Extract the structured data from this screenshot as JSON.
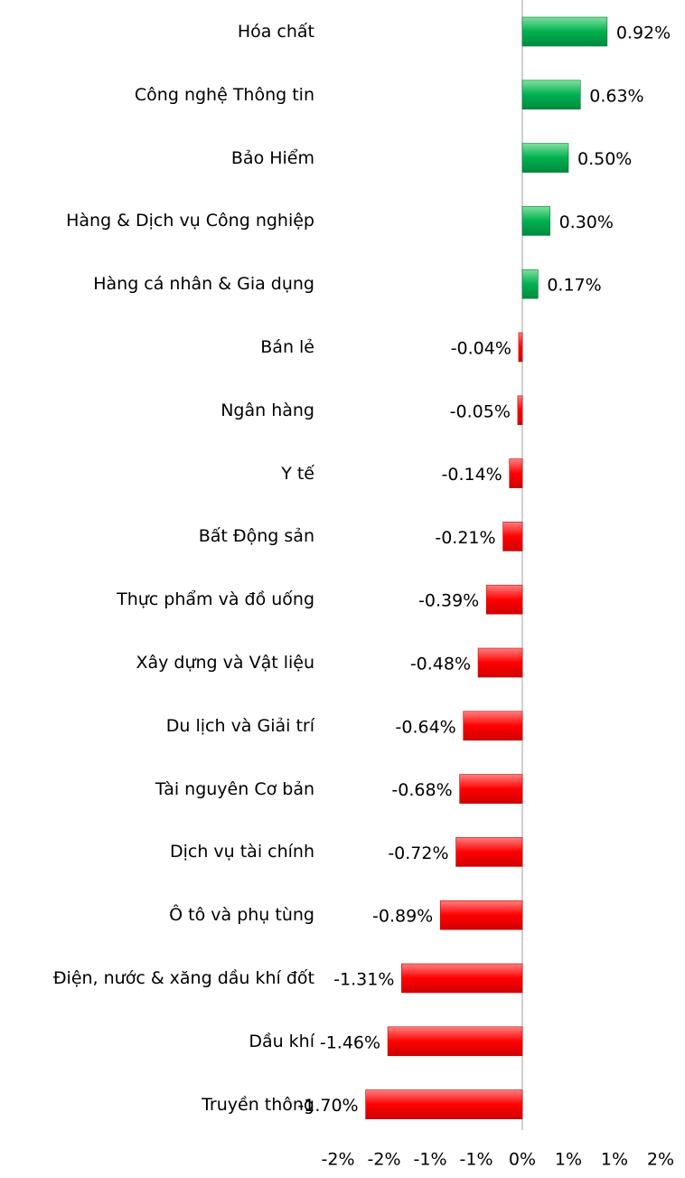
{
  "chart_data": {
    "type": "bar",
    "orientation": "horizontal",
    "categories": [
      "Hóa chất",
      "Công nghệ Thông tin",
      "Bảo Hiểm",
      "Hàng & Dịch vụ Công nghiệp",
      "Hàng cá nhân & Gia dụng",
      "Bán lẻ",
      "Ngân hàng",
      "Y tế",
      "Bất Động sản",
      "Thực phẩm và đồ uống",
      "Xây dựng và Vật liệu",
      "Du lịch và Giải trí",
      "Tài nguyên Cơ bản",
      "Dịch vụ tài chính",
      "Ô tô và phụ tùng",
      "Điện, nước & xăng dầu khí đốt",
      "Dầu khí",
      "Truyền thông"
    ],
    "values": [
      0.92,
      0.63,
      0.5,
      0.3,
      0.17,
      -0.04,
      -0.05,
      -0.14,
      -0.21,
      -0.39,
      -0.48,
      -0.64,
      -0.68,
      -0.72,
      -0.89,
      -1.31,
      -1.46,
      -1.7
    ],
    "value_labels": [
      "0.92%",
      "0.63%",
      "0.50%",
      "0.30%",
      "0.17%",
      "-0.04%",
      "-0.05%",
      "-0.14%",
      "-0.21%",
      "-0.39%",
      "-0.48%",
      "-0.64%",
      "-0.68%",
      "-0.72%",
      "-0.89%",
      "-1.31%",
      "-1.46%",
      "-1.70%"
    ],
    "positive_color": "#00b050",
    "negative_color": "#ff0000",
    "xlim": [
      -2,
      1.5
    ],
    "xticks": [
      {
        "value": -2,
        "label": "-2%"
      },
      {
        "value": -1.5,
        "label": "-2%"
      },
      {
        "value": -1,
        "label": "-1%"
      },
      {
        "value": -0.5,
        "label": "-1%"
      },
      {
        "value": 0,
        "label": "0%"
      },
      {
        "value": 0.5,
        "label": "1%"
      },
      {
        "value": 1,
        "label": "1%"
      },
      {
        "value": 1.5,
        "label": "2%"
      }
    ]
  }
}
